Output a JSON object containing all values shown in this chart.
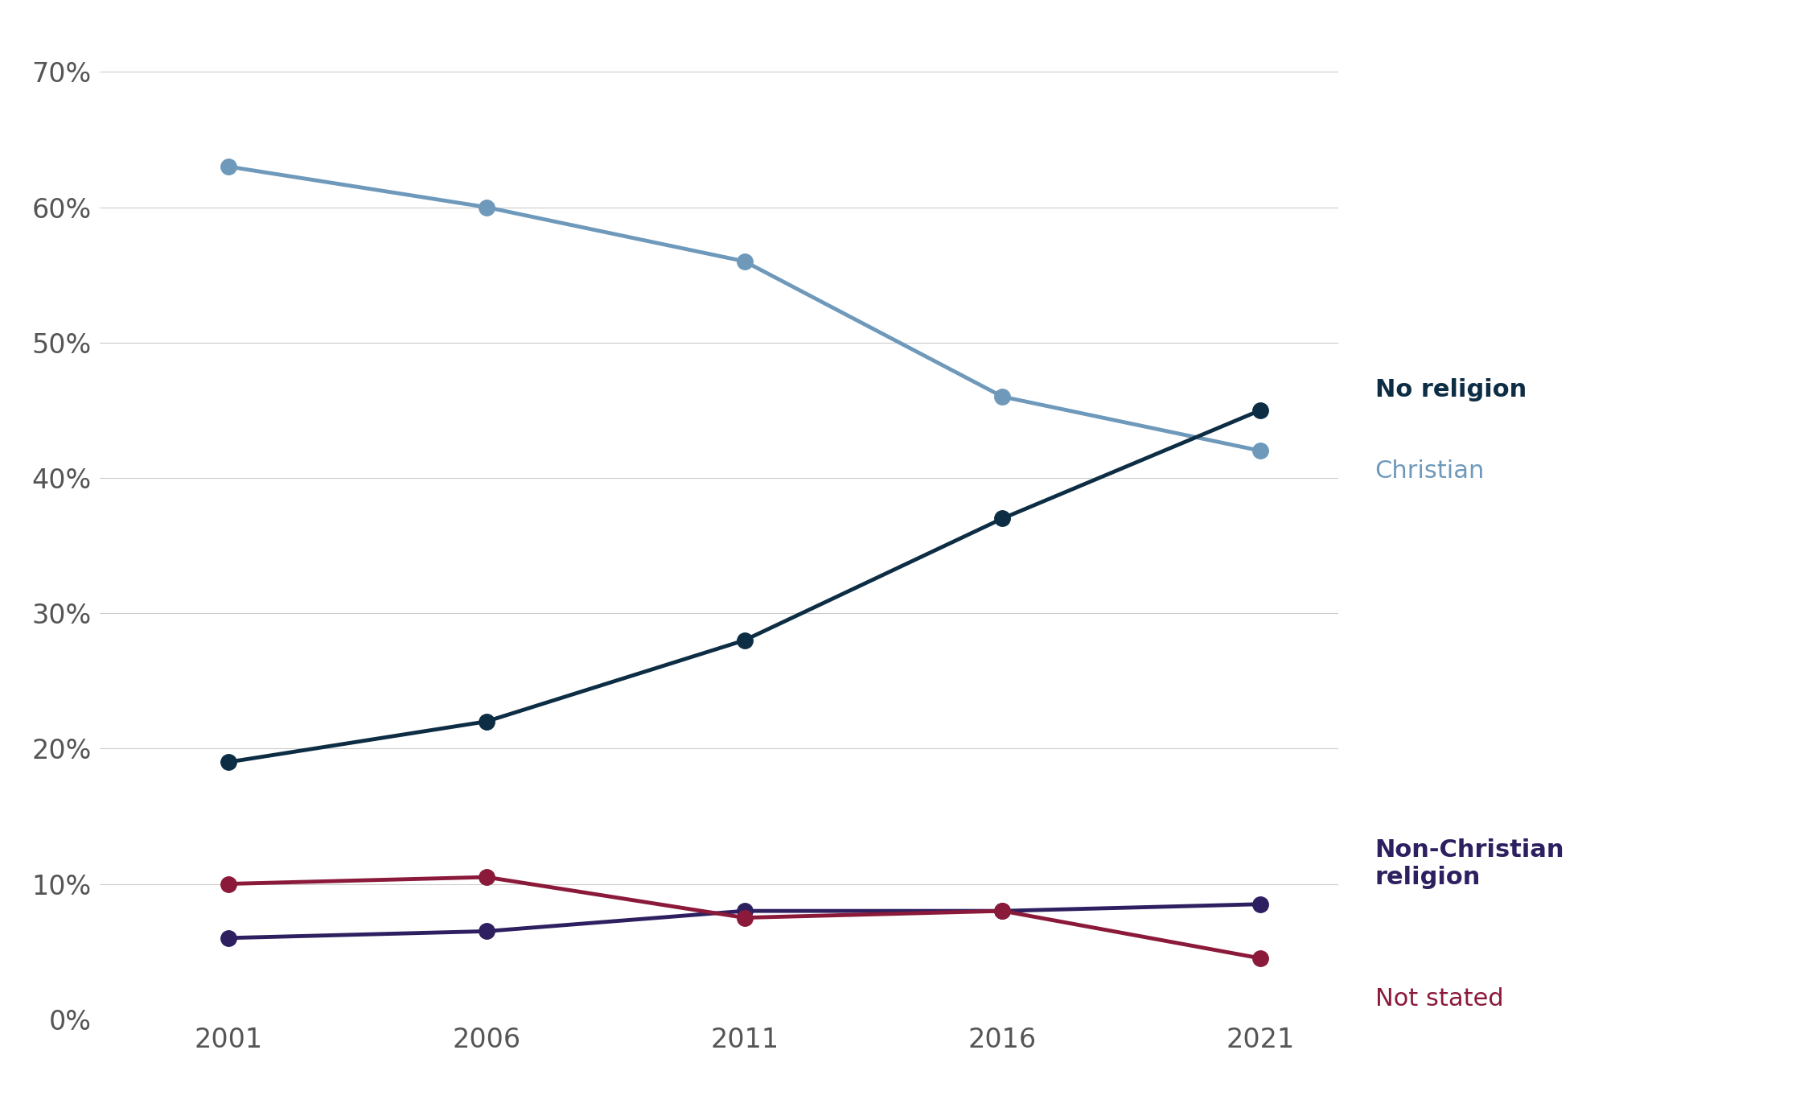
{
  "years": [
    2001,
    2006,
    2011,
    2016,
    2021
  ],
  "no_religion": [
    0.19,
    0.22,
    0.28,
    0.37,
    0.45
  ],
  "christian": [
    0.63,
    0.6,
    0.56,
    0.46,
    0.42
  ],
  "non_christian": [
    0.06,
    0.065,
    0.08,
    0.08,
    0.085
  ],
  "not_stated": [
    0.1,
    0.105,
    0.075,
    0.08,
    0.045
  ],
  "no_religion_color": "#0d2d45",
  "christian_color": "#6e99bb",
  "non_christian_color": "#2e2060",
  "not_stated_color": "#8b1a3a",
  "background_color": "#ffffff",
  "grid_color": "#cccccc",
  "legend_no_religion": "No religion",
  "legend_christian": "Christian",
  "legend_non_christian": "Non-Christian\nreligion",
  "legend_not_stated": "Not stated",
  "ylim": [
    0.0,
    0.72
  ],
  "yticks": [
    0.0,
    0.1,
    0.2,
    0.3,
    0.4,
    0.5,
    0.6,
    0.7
  ],
  "line_width": 3.5,
  "marker_size": 14
}
